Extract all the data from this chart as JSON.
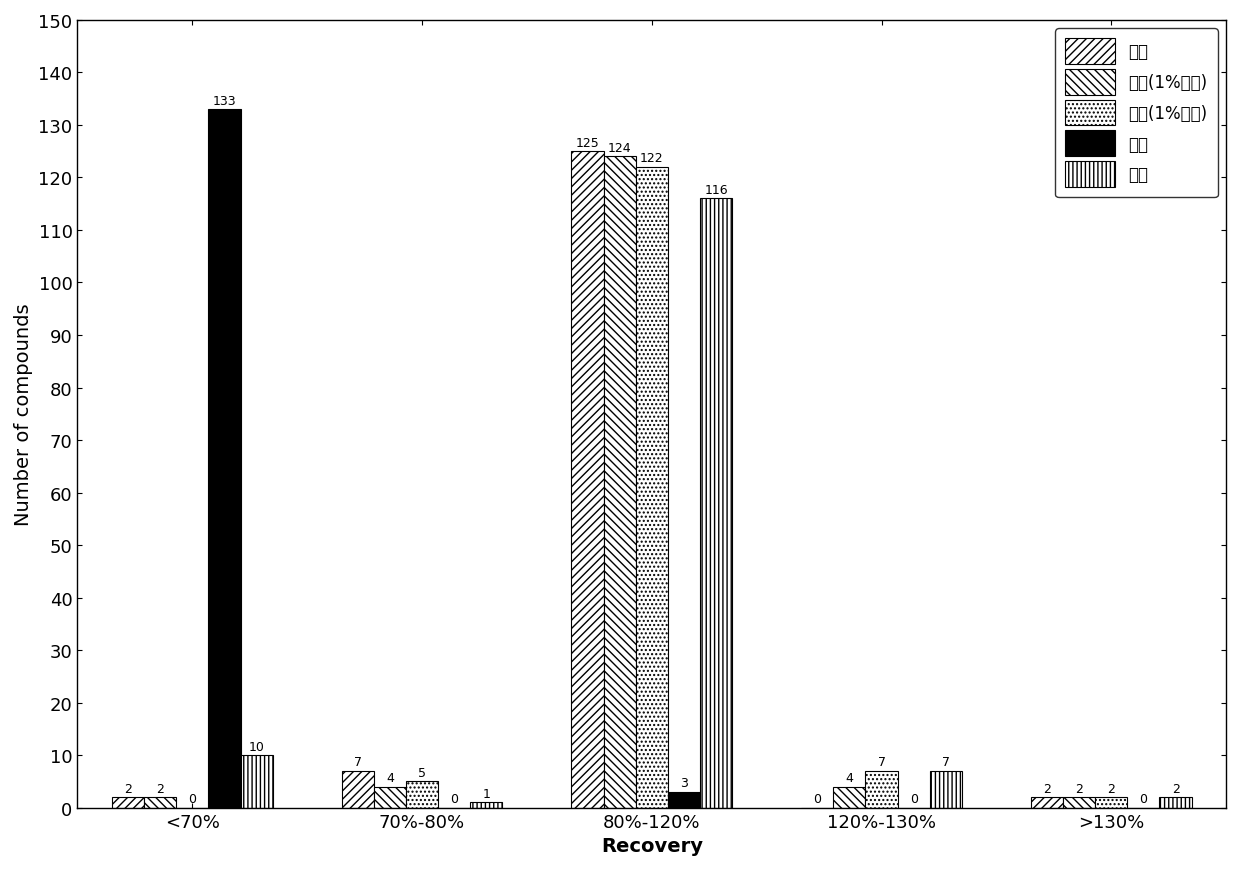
{
  "categories": [
    "<70%",
    "70%-80%",
    "80%-120%",
    "120%-130%",
    ">130%"
  ],
  "series": [
    {
      "label": "乙腔",
      "values": [
        2,
        7,
        125,
        0,
        2
      ],
      "hatch": "////",
      "facecolor": "white",
      "edgecolor": "black"
    },
    {
      "label": "乙腔(1%甲酸)",
      "values": [
        2,
        4,
        124,
        4,
        2
      ],
      "hatch": "\\\\\\\\",
      "facecolor": "white",
      "edgecolor": "black"
    },
    {
      "label": "乙腔(1%乙酸)",
      "values": [
        0,
        5,
        122,
        7,
        2
      ],
      "hatch": "....",
      "facecolor": "white",
      "edgecolor": "black"
    },
    {
      "label": "甲醇",
      "values": [
        133,
        0,
        3,
        0,
        0
      ],
      "hatch": "====",
      "facecolor": "black",
      "edgecolor": "black"
    },
    {
      "label": "丙酒",
      "values": [
        10,
        1,
        116,
        7,
        2
      ],
      "hatch": "||||",
      "facecolor": "white",
      "edgecolor": "black"
    }
  ],
  "ylabel": "Number of compounds",
  "xlabel": "Recovery",
  "ylim": [
    0,
    150
  ],
  "yticks": [
    0,
    10,
    20,
    30,
    40,
    50,
    60,
    70,
    80,
    90,
    100,
    110,
    120,
    130,
    140,
    150
  ],
  "bar_width": 0.14,
  "title_fontsize": 13,
  "label_fontsize": 14,
  "tick_fontsize": 13,
  "annot_fontsize": 9
}
